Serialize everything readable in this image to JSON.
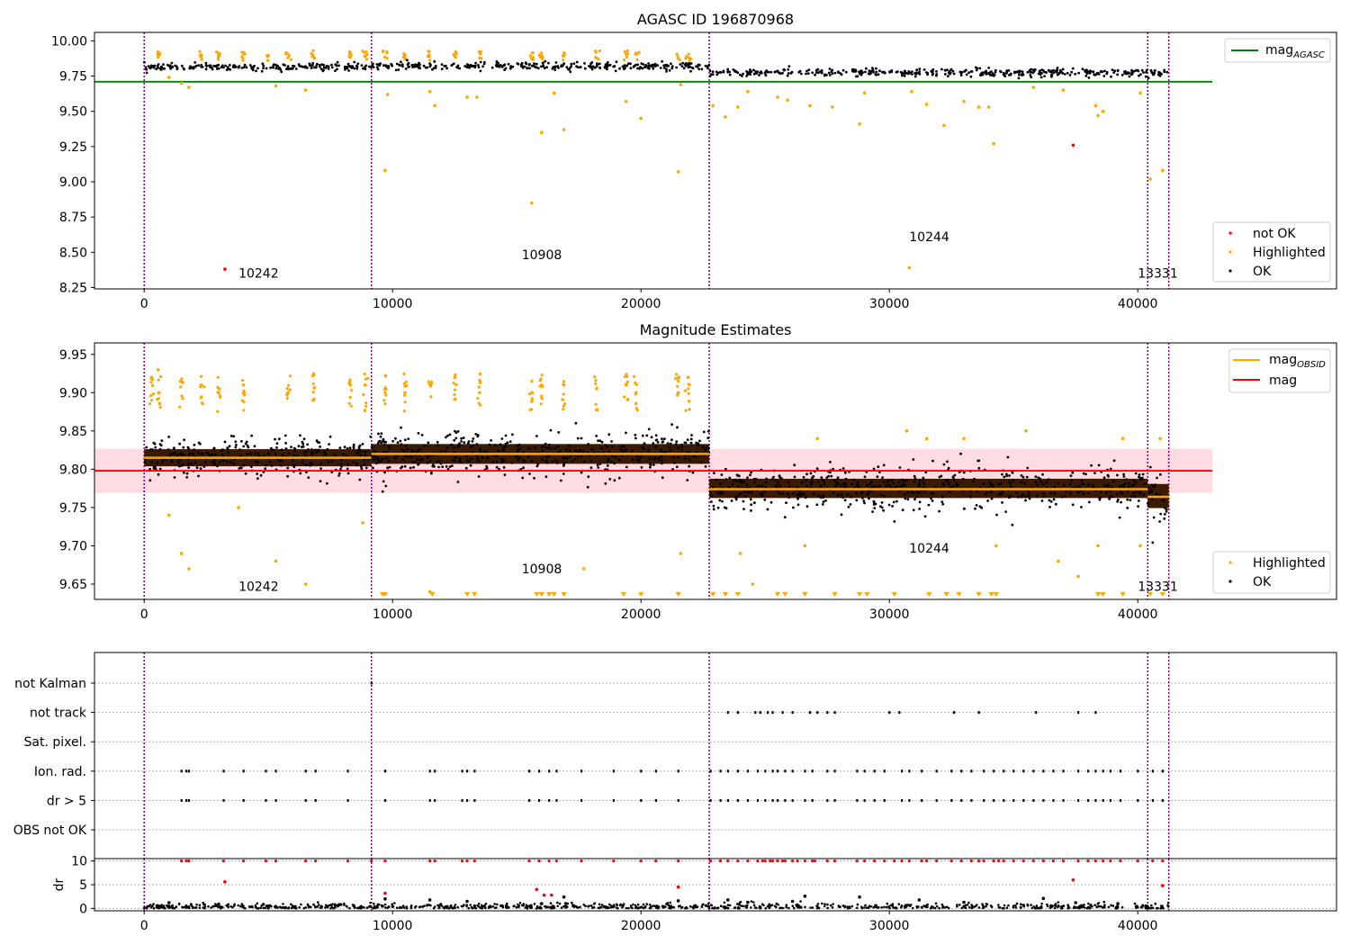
{
  "colors": {
    "ok": "#000000",
    "highlighted": "#ffa500",
    "not_ok": "#ff0000",
    "agasc_line": "#008000",
    "mag_line": "#ff0000",
    "mag_band": "#ffc0cb",
    "obsid_line": "#ffa500",
    "obsid_vline": "#800080",
    "grid": "#b0b0b0"
  },
  "chart_data": [
    {
      "type": "scatter",
      "title": "AGASC ID 196870968",
      "xlim": [
        -2000,
        48000
      ],
      "ylim": [
        8.24,
        10.06
      ],
      "xticks": [
        0,
        10000,
        20000,
        30000,
        40000
      ],
      "yticks": [
        8.25,
        8.5,
        8.75,
        9.0,
        9.25,
        9.5,
        9.75,
        10.0
      ],
      "ytick_labels": [
        "8.25",
        "8.50",
        "8.75",
        "9.00",
        "9.25",
        "9.50",
        "9.75",
        "10.00"
      ],
      "obsid_boundaries": [
        0,
        9150,
        22750,
        40400,
        41250
      ],
      "obsid_labels": [
        {
          "text": "10242",
          "x": 3800,
          "y": 8.32
        },
        {
          "text": "10908",
          "x": 15200,
          "y": 8.45
        },
        {
          "text": "10244",
          "x": 30800,
          "y": 8.58
        },
        {
          "text": "13331",
          "x": 40000,
          "y": 8.32
        }
      ],
      "mag_agasc": 9.71,
      "mag_agasc_xrange": [
        -2000,
        43000
      ],
      "ok_bands": [
        {
          "x0": 0,
          "x1": 9150,
          "y": 9.815,
          "spread": 0.03
        },
        {
          "x0": 9150,
          "x1": 22750,
          "y": 9.82,
          "spread": 0.035
        },
        {
          "x0": 22750,
          "x1": 40400,
          "y": 9.775,
          "spread": 0.035
        },
        {
          "x0": 40400,
          "x1": 41250,
          "y": 9.765,
          "spread": 0.04
        }
      ],
      "highlighted_points": [
        [
          560,
          9.92
        ],
        [
          600,
          9.9
        ],
        [
          1000,
          9.74
        ],
        [
          1500,
          9.7
        ],
        [
          1800,
          9.67
        ],
        [
          2300,
          9.9
        ],
        [
          3000,
          9.89
        ],
        [
          4000,
          9.91
        ],
        [
          5300,
          9.68
        ],
        [
          6500,
          9.65
        ],
        [
          8300,
          9.91
        ],
        [
          8900,
          9.89
        ],
        [
          9700,
          9.08
        ],
        [
          9800,
          9.62
        ],
        [
          10500,
          9.9
        ],
        [
          11500,
          9.64
        ],
        [
          11700,
          9.54
        ],
        [
          12500,
          9.9
        ],
        [
          13000,
          9.6
        ],
        [
          13400,
          9.6
        ],
        [
          15600,
          8.85
        ],
        [
          16000,
          9.35
        ],
        [
          16500,
          9.63
        ],
        [
          16900,
          9.37
        ],
        [
          19400,
          9.57
        ],
        [
          20000,
          9.45
        ],
        [
          21500,
          9.07
        ],
        [
          21600,
          9.69
        ],
        [
          22900,
          9.54
        ],
        [
          23400,
          9.46
        ],
        [
          23900,
          9.53
        ],
        [
          24300,
          9.64
        ],
        [
          25500,
          9.6
        ],
        [
          25900,
          9.58
        ],
        [
          26800,
          9.54
        ],
        [
          27700,
          9.53
        ],
        [
          28800,
          9.41
        ],
        [
          29000,
          9.63
        ],
        [
          30800,
          8.39
        ],
        [
          30900,
          9.64
        ],
        [
          31500,
          9.55
        ],
        [
          32200,
          9.4
        ],
        [
          33000,
          9.57
        ],
        [
          33600,
          9.53
        ],
        [
          34000,
          9.53
        ],
        [
          34200,
          9.27
        ],
        [
          35800,
          9.67
        ],
        [
          37000,
          9.65
        ],
        [
          38300,
          9.54
        ],
        [
          38400,
          9.47
        ],
        [
          38600,
          9.5
        ],
        [
          40100,
          9.63
        ],
        [
          40500,
          9.02
        ],
        [
          41000,
          9.08
        ]
      ],
      "not_ok_points": [
        [
          3250,
          8.38
        ],
        [
          37400,
          9.26
        ]
      ],
      "legend_lines": [
        "mag",
        "AGASC"
      ],
      "legend_points": [
        "not OK",
        "Highlighted",
        "OK"
      ]
    },
    {
      "type": "scatter",
      "title": "Magnitude Estimates",
      "xlim": [
        -2000,
        48000
      ],
      "ylim": [
        9.63,
        9.965
      ],
      "xticks": [
        0,
        10000,
        20000,
        30000,
        40000
      ],
      "yticks": [
        9.65,
        9.7,
        9.75,
        9.8,
        9.85,
        9.9,
        9.95
      ],
      "ytick_labels": [
        "9.65",
        "9.70",
        "9.75",
        "9.80",
        "9.85",
        "9.90",
        "9.95"
      ],
      "obsid_boundaries": [
        0,
        9150,
        22750,
        40400,
        41250
      ],
      "obsid_labels": [
        {
          "text": "10242",
          "x": 3800,
          "y": 9.641
        },
        {
          "text": "10908",
          "x": 15200,
          "y": 9.664
        },
        {
          "text": "10244",
          "x": 30800,
          "y": 9.691
        },
        {
          "text": "13331",
          "x": 40000,
          "y": 9.641
        }
      ],
      "mag": 9.798,
      "mag_band": [
        9.769,
        9.827
      ],
      "mag_xrange": [
        -2000,
        43000
      ],
      "mag_obsid": [
        {
          "x0": 0,
          "x1": 9150,
          "value": 9.815
        },
        {
          "x0": 9150,
          "x1": 22750,
          "value": 9.82
        },
        {
          "x0": 22750,
          "x1": 40400,
          "value": 9.774
        },
        {
          "x0": 40400,
          "x1": 41250,
          "value": 9.764
        }
      ],
      "ok_bands": [
        {
          "x0": 0,
          "x1": 9150,
          "y": 9.815,
          "spread": 0.032
        },
        {
          "x0": 9150,
          "x1": 22750,
          "y": 9.82,
          "spread": 0.037
        },
        {
          "x0": 22750,
          "x1": 40400,
          "y": 9.775,
          "spread": 0.036
        },
        {
          "x0": 40400,
          "x1": 41250,
          "y": 9.765,
          "spread": 0.045
        }
      ],
      "highlighted_points": [
        [
          300,
          9.92
        ],
        [
          560,
          9.93
        ],
        [
          600,
          9.9
        ],
        [
          1000,
          9.74
        ],
        [
          1500,
          9.69
        ],
        [
          1800,
          9.67
        ],
        [
          2300,
          9.91
        ],
        [
          3000,
          9.9
        ],
        [
          3800,
          9.75
        ],
        [
          4000,
          9.91
        ],
        [
          5300,
          9.68
        ],
        [
          5800,
          9.9
        ],
        [
          6500,
          9.65
        ],
        [
          6800,
          9.89
        ],
        [
          8300,
          9.91
        ],
        [
          8800,
          9.73
        ],
        [
          8900,
          9.91
        ],
        [
          9700,
          9.9
        ],
        [
          10500,
          9.9
        ],
        [
          11500,
          9.64
        ],
        [
          12500,
          9.92
        ],
        [
          13500,
          9.9
        ],
        [
          15600,
          9.9
        ],
        [
          16000,
          9.91
        ],
        [
          16900,
          9.91
        ],
        [
          17700,
          9.67
        ],
        [
          19400,
          9.91
        ],
        [
          19800,
          9.9
        ],
        [
          21500,
          9.9
        ],
        [
          21600,
          9.69
        ],
        [
          21900,
          9.92
        ],
        [
          24000,
          9.69
        ],
        [
          24500,
          9.65
        ],
        [
          26600,
          9.7
        ],
        [
          27100,
          9.84
        ],
        [
          30700,
          9.85
        ],
        [
          31500,
          9.84
        ],
        [
          33000,
          9.84
        ],
        [
          34300,
          9.7
        ],
        [
          35500,
          9.85
        ],
        [
          36800,
          9.68
        ],
        [
          37600,
          9.66
        ],
        [
          38400,
          9.7
        ],
        [
          39400,
          9.84
        ],
        [
          40100,
          9.7
        ],
        [
          40900,
          9.84
        ]
      ],
      "offscale_low_x": [
        9600,
        9700,
        11600,
        13000,
        13300,
        15800,
        16000,
        16300,
        16500,
        16900,
        19300,
        20000,
        21500,
        22900,
        23400,
        23900,
        25500,
        25800,
        26600,
        27800,
        28800,
        29100,
        30200,
        31600,
        32300,
        32800,
        33600,
        34100,
        34300,
        38400,
        38600,
        39400,
        40500,
        41000
      ],
      "legend_lines": [
        "mag",
        "OBSID",
        "mag"
      ],
      "legend_points": [
        "Highlighted",
        "OK"
      ]
    },
    {
      "type": "scatter",
      "xlim": [
        -2000,
        48000
      ],
      "categories": [
        "not Kalman",
        "not track",
        "Sat. pixel.",
        "Ion. rad.",
        "dr > 5",
        "OBS not OK"
      ],
      "obsid_boundaries": [
        0,
        9150,
        22750,
        40400,
        41250
      ],
      "flag_points": {
        "not Kalman": [
          9150
        ],
        "not track": [
          23500,
          23900,
          24600,
          24800,
          25100,
          25300,
          25700,
          26100,
          26800,
          27100,
          27500,
          27800,
          30000,
          30400,
          32600,
          33600,
          35900,
          37600,
          38300
        ],
        "Sat. pixel.": [],
        "Ion. rad.": [
          1500,
          1700,
          1800,
          3200,
          4000,
          4900,
          5300,
          6500,
          6900,
          8200,
          9700,
          11500,
          11700,
          12800,
          13000,
          13300,
          15500,
          15900,
          16300,
          16600,
          17600,
          18900,
          20000,
          20600,
          21500,
          22800,
          23200,
          23500,
          23900,
          24300,
          24700,
          25000,
          25300,
          25500,
          25800,
          26100,
          26600,
          26900,
          27500,
          27800,
          28700,
          29000,
          29400,
          29800,
          30500,
          30800,
          31300,
          31900,
          32500,
          32900,
          33300,
          33800,
          34200,
          34600,
          35000,
          35400,
          35800,
          36200,
          36600,
          37000,
          37600,
          38000,
          38300,
          38600,
          38900,
          39300,
          40000,
          40600,
          41000
        ],
        "dr > 5": [
          1500,
          1700,
          1800,
          3200,
          4000,
          4900,
          5300,
          6500,
          6900,
          8200,
          9700,
          11500,
          11700,
          12800,
          13000,
          13300,
          15500,
          15900,
          16300,
          16600,
          17600,
          18900,
          20000,
          20600,
          21500,
          22800,
          23200,
          23500,
          23900,
          24300,
          24700,
          25000,
          25300,
          25500,
          25800,
          26100,
          26600,
          26900,
          27500,
          27800,
          28700,
          29000,
          29400,
          29800,
          30500,
          30800,
          31300,
          31900,
          32500,
          32900,
          33300,
          33800,
          34200,
          34600,
          35000,
          35400,
          35800,
          36200,
          36600,
          37000,
          37600,
          38000,
          38300,
          38600,
          38900,
          39300,
          40000,
          40600,
          41000
        ],
        "OBS not OK": []
      },
      "flag_labels": [
        "not Kalman",
        "not track",
        "Sat. pixel.",
        "Ion. rad.",
        "dr > 5",
        "OBS not OK"
      ]
    },
    {
      "type": "scatter",
      "ylabel": "dr",
      "xlim": [
        -2000,
        48000
      ],
      "ylim": [
        -0.5,
        10.5
      ],
      "xticks": [
        0,
        10000,
        20000,
        30000,
        40000
      ],
      "yticks": [
        0,
        5,
        10
      ],
      "ytick_labels": [
        "0",
        "5",
        "10"
      ],
      "obsid_boundaries": [
        0,
        9150,
        22750,
        40400,
        41250
      ],
      "dr_base": 0.3,
      "dr_spread": 0.4,
      "dr_black_extra": [
        [
          1000,
          1.2
        ],
        [
          3000,
          0.9
        ],
        [
          9700,
          2.0
        ],
        [
          11500,
          1.8
        ],
        [
          13000,
          1.5
        ],
        [
          16000,
          1.0
        ],
        [
          16900,
          2.4
        ],
        [
          21500,
          1.6
        ],
        [
          23500,
          1.8
        ],
        [
          24300,
          1.3
        ],
        [
          26100,
          1.5
        ],
        [
          26600,
          2.6
        ],
        [
          28800,
          2.4
        ],
        [
          31200,
          1.8
        ],
        [
          33000,
          1.3
        ],
        [
          36200,
          2.1
        ],
        [
          37500,
          1.2
        ],
        [
          39200,
          1.0
        ]
      ],
      "dr_red": [
        [
          3250,
          5.6
        ],
        [
          9700,
          3.2
        ],
        [
          15800,
          4.0
        ],
        [
          16100,
          2.8
        ],
        [
          16400,
          2.8
        ],
        [
          21500,
          4.5
        ],
        [
          37400,
          6.0
        ],
        [
          41000,
          4.8
        ]
      ],
      "dr_red_top_x": [
        1500,
        1700,
        1800,
        3200,
        4000,
        4900,
        5300,
        6500,
        6900,
        8200,
        9150,
        9700,
        11500,
        11700,
        12800,
        13000,
        13300,
        15500,
        15900,
        16300,
        16600,
        17600,
        18900,
        20000,
        20600,
        21500,
        22800,
        23200,
        23500,
        23900,
        24300,
        24700,
        24900,
        25000,
        25200,
        25300,
        25500,
        25700,
        25800,
        26100,
        26300,
        26600,
        26900,
        27000,
        27500,
        27800,
        28700,
        29000,
        29400,
        29800,
        30200,
        30500,
        30800,
        31300,
        31500,
        31900,
        32500,
        32900,
        33300,
        33600,
        33800,
        34200,
        34400,
        34600,
        35000,
        35400,
        35800,
        36200,
        36600,
        37000,
        37600,
        38000,
        38300,
        38600,
        38900,
        39300,
        40000,
        40600,
        41000
      ]
    }
  ]
}
